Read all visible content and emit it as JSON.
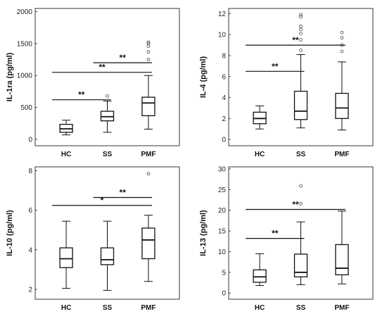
{
  "chart_data": [
    {
      "type": "box",
      "ylabel": "IL-1ra (pg/ml)",
      "categories": [
        "HC",
        "SS",
        "PMF"
      ],
      "ylim": [
        -100,
        2050
      ],
      "yticks": [
        0,
        500,
        1000,
        1500,
        2000
      ],
      "grid": false,
      "boxes": [
        {
          "category": "HC",
          "min": 70,
          "q1": 110,
          "median": 165,
          "q3": 235,
          "max": 300,
          "outliers": []
        },
        {
          "category": "SS",
          "min": 110,
          "q1": 290,
          "median": 355,
          "q3": 440,
          "max": 600,
          "outliers": [
            680
          ]
        },
        {
          "category": "PMF",
          "min": 160,
          "q1": 370,
          "median": 570,
          "q3": 660,
          "max": 1000,
          "outliers": [
            1250,
            1370,
            1460,
            1500,
            1520
          ]
        }
      ],
      "significance": [
        {
          "from": "HC",
          "to": "SS",
          "y": 620,
          "label": "**"
        },
        {
          "from": "SS",
          "to": "PMF",
          "y": 1200,
          "label": "**"
        },
        {
          "from": "HC",
          "to": "PMF",
          "y": 1050,
          "label": "**"
        }
      ]
    },
    {
      "type": "box",
      "ylabel": "IL-4 (pg/ml)",
      "categories": [
        "HC",
        "SS",
        "PMF"
      ],
      "ylim": [
        -0.6,
        12.5
      ],
      "yticks": [
        0,
        2,
        4,
        6,
        8,
        10,
        12
      ],
      "grid": false,
      "boxes": [
        {
          "category": "HC",
          "min": 1.0,
          "q1": 1.5,
          "median": 2.0,
          "q3": 2.6,
          "max": 3.2,
          "outliers": []
        },
        {
          "category": "SS",
          "min": 1.1,
          "q1": 1.9,
          "median": 2.7,
          "q3": 4.6,
          "max": 8.1,
          "outliers": [
            8.5,
            9.5,
            10.1,
            10.5,
            10.8,
            11.7,
            11.9
          ]
        },
        {
          "category": "PMF",
          "min": 0.9,
          "q1": 2.0,
          "median": 3.0,
          "q3": 4.4,
          "max": 7.4,
          "outliers": [
            8.4,
            9.0,
            9.7,
            10.2
          ]
        }
      ],
      "significance": [
        {
          "from": "HC",
          "to": "SS",
          "y": 6.5,
          "label": "**"
        },
        {
          "from": "HC",
          "to": "PMF",
          "y": 9.0,
          "label": "**"
        }
      ]
    },
    {
      "type": "box",
      "ylabel": "IL-10 (pg/ml)",
      "categories": [
        "HC",
        "SS",
        "PMF"
      ],
      "ylim": [
        1.5,
        8.2
      ],
      "yticks": [
        2,
        4,
        6,
        8
      ],
      "grid": false,
      "boxes": [
        {
          "category": "HC",
          "min": 2.05,
          "q1": 3.1,
          "median": 3.55,
          "q3": 4.1,
          "max": 5.45,
          "outliers": []
        },
        {
          "category": "SS",
          "min": 1.95,
          "q1": 3.25,
          "median": 3.5,
          "q3": 4.1,
          "max": 5.45,
          "outliers": []
        },
        {
          "category": "PMF",
          "min": 2.4,
          "q1": 3.55,
          "median": 4.5,
          "q3": 5.1,
          "max": 5.75,
          "outliers": [
            7.85
          ]
        }
      ],
      "significance": [
        {
          "from": "SS",
          "to": "PMF",
          "y": 6.65,
          "label": "**"
        },
        {
          "from": "HC",
          "to": "PMF",
          "y": 6.25,
          "label": "*"
        }
      ]
    },
    {
      "type": "box",
      "ylabel": "IL-13 (pg/ml)",
      "categories": [
        "HC",
        "SS",
        "PMF"
      ],
      "ylim": [
        -1.5,
        30.5
      ],
      "yticks": [
        0,
        5,
        10,
        15,
        20,
        25,
        30
      ],
      "grid": false,
      "boxes": [
        {
          "category": "HC",
          "min": 1.8,
          "q1": 2.6,
          "median": 3.9,
          "q3": 5.6,
          "max": 9.5,
          "outliers": []
        },
        {
          "category": "SS",
          "min": 2.0,
          "q1": 3.9,
          "median": 5.0,
          "q3": 9.4,
          "max": 17.2,
          "outliers": [
            21.6,
            25.9
          ]
        },
        {
          "category": "PMF",
          "min": 2.2,
          "q1": 4.4,
          "median": 6.0,
          "q3": 11.7,
          "max": 19.8,
          "outliers": []
        }
      ],
      "significance": [
        {
          "from": "HC",
          "to": "SS",
          "y": 13.2,
          "label": "**"
        },
        {
          "from": "HC",
          "to": "PMF",
          "y": 20.2,
          "label": "**"
        }
      ]
    }
  ]
}
